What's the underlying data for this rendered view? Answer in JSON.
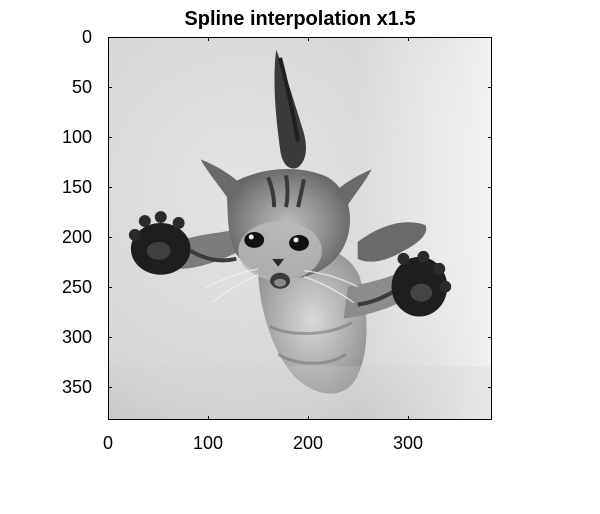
{
  "title": "Spline interpolation x1.5",
  "image": {
    "description_icon": "cat-photo",
    "colormap": "grayscale"
  },
  "axes": {
    "x_ticks": [
      "0",
      "100",
      "200",
      "300"
    ],
    "y_ticks": [
      "0",
      "50",
      "100",
      "150",
      "200",
      "250",
      "300",
      "350"
    ],
    "x_range": [
      0,
      384
    ],
    "y_range": [
      0,
      384
    ]
  }
}
